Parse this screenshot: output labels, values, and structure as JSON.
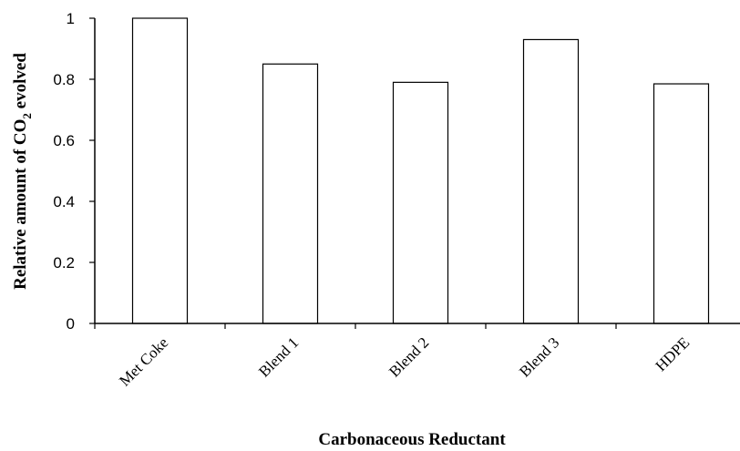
{
  "chart_data": {
    "type": "bar",
    "categories": [
      "Met Coke",
      "Blend 1",
      "Blend 2",
      "Blend 3",
      "HDPE"
    ],
    "values": [
      1.0,
      0.85,
      0.79,
      0.93,
      0.785
    ],
    "xlabel": "Carbonaceous Reductant",
    "ylabel": {
      "before": "Relative amount of CO",
      "subscript": "2",
      "after": " evolved"
    },
    "ylim": [
      0,
      1
    ],
    "yticks": [
      "0",
      "0.2",
      "0.4",
      "0.6",
      "0.8",
      "1"
    ],
    "grid": false,
    "legend": "none",
    "bar_fill": "#ffffff",
    "bar_stroke": "#000000"
  }
}
